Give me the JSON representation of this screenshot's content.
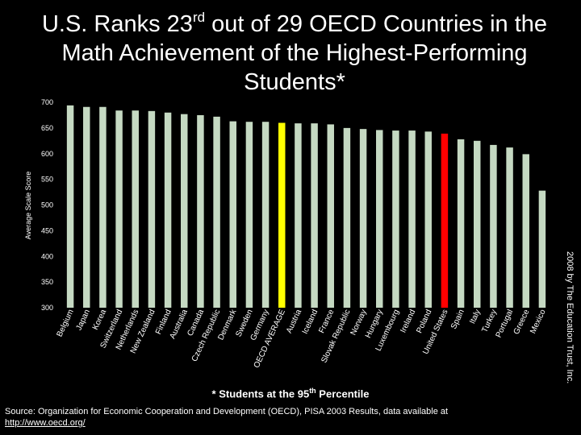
{
  "slide": {
    "title_part1": "U.S. Ranks 23",
    "title_sup": "rd",
    "title_part2": " out of 29 OECD Countries in the Math Achievement of the Highest-Performing Students*",
    "footnote_text": "* Students at the 95",
    "footnote_sup": "th",
    "footnote_tail": " Percentile",
    "source_text": "Source: Organization for Economic Cooperation and Development (OECD), PISA 2003 Results, data available at",
    "source_link": "http://www.oecd.org/",
    "copyright": "2008 by The Education Trust, Inc."
  },
  "colors": {
    "background": "#000000",
    "bar_default": "#c5d9c2",
    "bar_average": "#ffff00",
    "bar_us": "#ff0000",
    "text": "#ffffff"
  },
  "chart_data": {
    "type": "bar",
    "ylabel": "Average Scale Score",
    "xlabel": "",
    "ylim": [
      300,
      700
    ],
    "yticks": [
      300,
      350,
      400,
      450,
      500,
      550,
      600,
      650,
      700
    ],
    "grid": false,
    "categories": [
      "Belgium",
      "Japan",
      "Korea",
      "Switzerland",
      "Netherlands",
      "New Zealand",
      "Finland",
      "Australia",
      "Canada",
      "Czech Republic",
      "Denmark",
      "Sweden",
      "Germany",
      "OECD AVERAGE",
      "Austria",
      "Iceland",
      "France",
      "Slovak Republic",
      "Norway",
      "Hungary",
      "Luxembourg",
      "Ireland",
      "Poland",
      "United States",
      "Spain",
      "Italy",
      "Turkey",
      "Portugal",
      "Greece",
      "Mexico"
    ],
    "values": [
      694,
      691,
      691,
      684,
      684,
      683,
      680,
      677,
      675,
      672,
      663,
      662,
      662,
      660,
      659,
      659,
      657,
      650,
      648,
      646,
      645,
      645,
      643,
      639,
      628,
      625,
      617,
      612,
      599,
      528
    ],
    "highlight": {
      "OECD AVERAGE": "average",
      "United States": "us"
    }
  }
}
